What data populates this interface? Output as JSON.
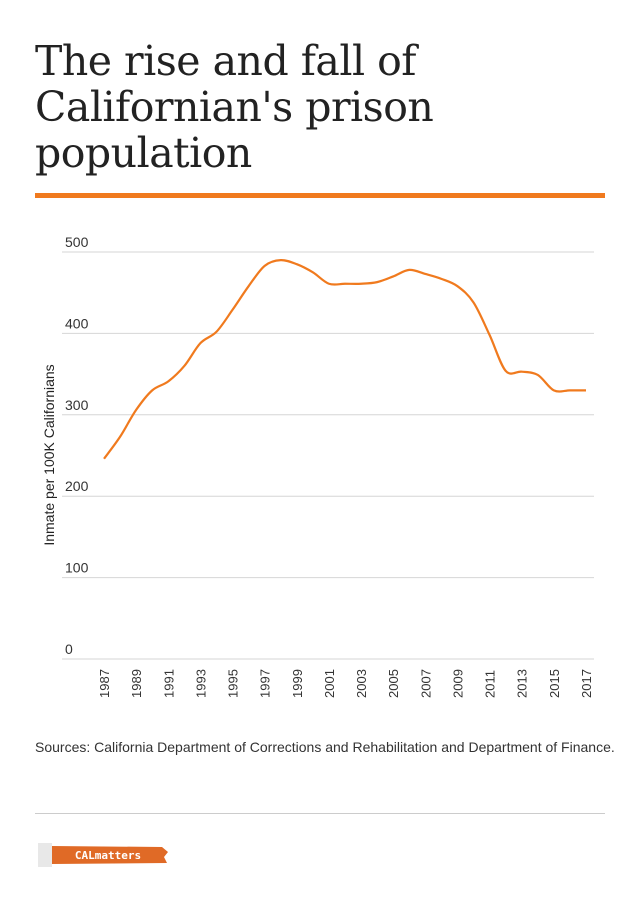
{
  "header": {
    "title": "The rise and fall of Californian's prison population"
  },
  "colors": {
    "accent": "#f07a1e",
    "grid": "#d6d6d6",
    "line": "#f07a1e"
  },
  "chart_data": {
    "type": "line",
    "title": "The rise and fall of Californian's prison population",
    "xlabel": "",
    "ylabel": "Inmate per 100K Californians",
    "ylim": [
      0,
      500
    ],
    "yticks": [
      "0",
      "100",
      "200",
      "300",
      "400",
      "500"
    ],
    "xticks": [
      "1987",
      "1989",
      "1991",
      "1993",
      "1995",
      "1997",
      "1999",
      "2001",
      "2003",
      "2005",
      "2007",
      "2009",
      "2011",
      "2013",
      "2015",
      "2017"
    ],
    "grid": true,
    "x": [
      1987,
      1988,
      1989,
      1990,
      1991,
      1992,
      1993,
      1994,
      1995,
      1996,
      1997,
      1998,
      1999,
      2000,
      2001,
      2002,
      2003,
      2004,
      2005,
      2006,
      2007,
      2008,
      2009,
      2010,
      2011,
      2012,
      2013,
      2014,
      2015,
      2016,
      2017
    ],
    "values": [
      246,
      273,
      306,
      330,
      341,
      360,
      388,
      402,
      429,
      458,
      483,
      490,
      485,
      475,
      461,
      461,
      461,
      463,
      470,
      478,
      473,
      467,
      458,
      438,
      398,
      354,
      353,
      349,
      330,
      330,
      330
    ]
  },
  "footer": {
    "source": "Sources: California Department of Corrections and Rehabilitation and Department of Finance.",
    "logo_text": "CALmatters"
  }
}
